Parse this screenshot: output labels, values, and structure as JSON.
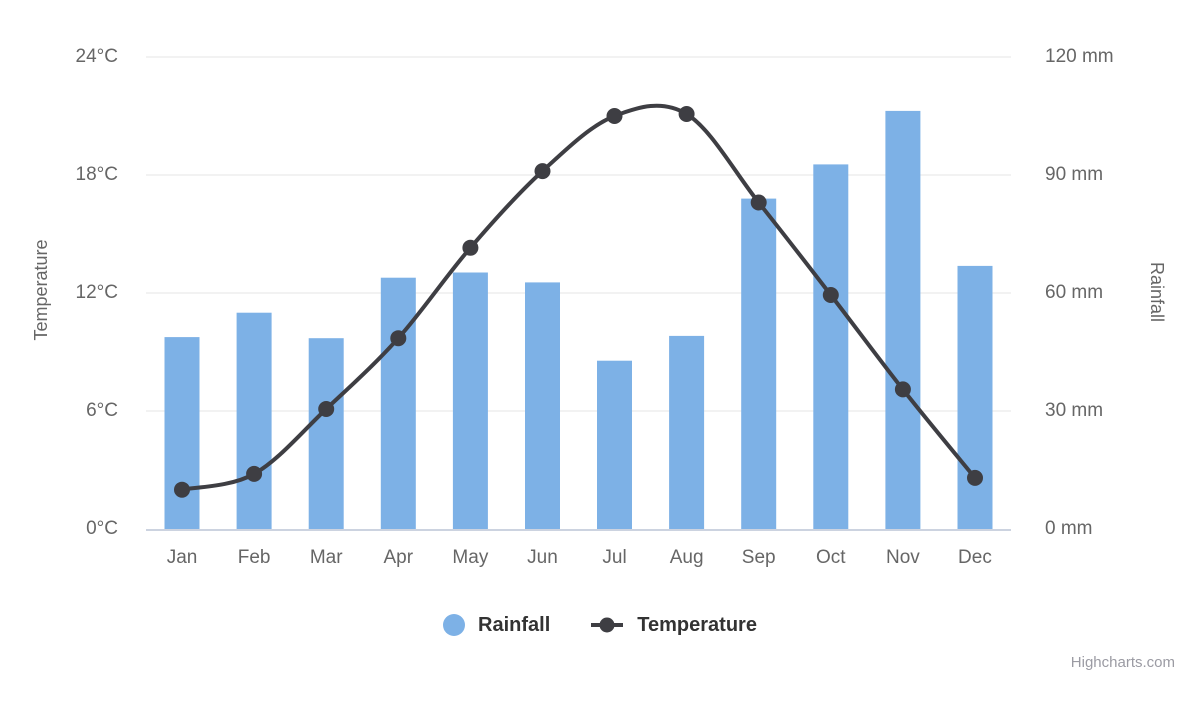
{
  "chart_data": {
    "type": "combo",
    "categories": [
      "Jan",
      "Feb",
      "Mar",
      "Apr",
      "May",
      "Jun",
      "Jul",
      "Aug",
      "Sep",
      "Oct",
      "Nov",
      "Dec"
    ],
    "series": [
      {
        "name": "Rainfall",
        "type": "column",
        "yaxis": "right",
        "unit": "mm",
        "color": "#7DB1E6",
        "values": [
          48.8,
          55.0,
          48.5,
          63.9,
          65.2,
          62.7,
          42.8,
          49.1,
          84.0,
          92.7,
          106.3,
          66.9
        ]
      },
      {
        "name": "Temperature",
        "type": "spline",
        "yaxis": "left",
        "unit": "°C",
        "color": "#3E3E43",
        "values": [
          2.0,
          2.8,
          6.1,
          9.7,
          14.3,
          18.2,
          21.0,
          21.1,
          16.6,
          11.9,
          7.1,
          2.6
        ]
      }
    ],
    "axes": {
      "left": {
        "title": "Temperature",
        "min": 0,
        "max": 24,
        "tick_interval": 6,
        "tick_labels": [
          "0°C",
          "6°C",
          "12°C",
          "18°C",
          "24°C"
        ]
      },
      "right": {
        "title": "Rainfall",
        "min": 0,
        "max": 120,
        "tick_interval": 30,
        "tick_labels": [
          "0 mm",
          "30 mm",
          "60 mm",
          "90 mm",
          "120 mm"
        ]
      }
    },
    "grid": {
      "show": true,
      "color": "#e6e6e6"
    },
    "axis_line_color": "#ccd3e0",
    "label_color": "#666666",
    "legend": {
      "position": "bottom-center",
      "items": [
        {
          "label": "Rainfall",
          "marker": "circle",
          "color": "#7DB1E6"
        },
        {
          "label": "Temperature",
          "marker": "line-dot",
          "color": "#3E3E43"
        }
      ]
    },
    "credits": "Highcharts.com"
  }
}
